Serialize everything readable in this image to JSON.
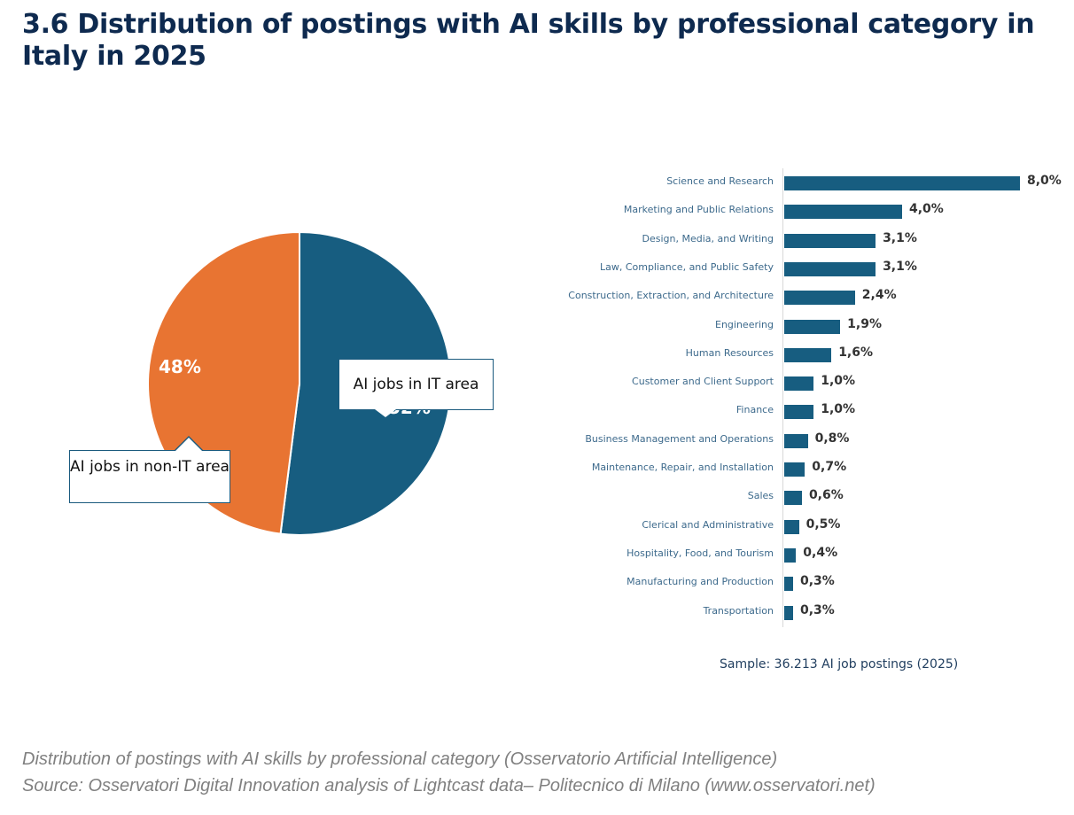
{
  "title": "3.6 Distribution of postings with AI skills by professional category in Italy in 2025",
  "colors": {
    "it": "#175d80",
    "non_it": "#e87432",
    "bar": "#175d80",
    "title": "#0e2a4f"
  },
  "pie": {
    "it_label": "AI jobs in IT area",
    "non_it_label": "AI jobs in non-IT area",
    "non_it_pct": "48%",
    "it_pct": "52%"
  },
  "bars": {
    "sample_note": "Sample: 36.213 AI job postings  (2025)",
    "items": [
      {
        "label": "Science and Research",
        "value": 8.0,
        "display": "8,0%"
      },
      {
        "label": "Marketing and Public Relations",
        "value": 4.0,
        "display": "4,0%"
      },
      {
        "label": "Design, Media, and Writing",
        "value": 3.1,
        "display": "3,1%"
      },
      {
        "label": "Law, Compliance, and Public Safety",
        "value": 3.1,
        "display": "3,1%"
      },
      {
        "label": "Construction, Extraction, and Architecture",
        "value": 2.4,
        "display": "2,4%"
      },
      {
        "label": "Engineering",
        "value": 1.9,
        "display": "1,9%"
      },
      {
        "label": "Human Resources",
        "value": 1.6,
        "display": "1,6%"
      },
      {
        "label": "Customer and Client Support",
        "value": 1.0,
        "display": "1,0%"
      },
      {
        "label": "Finance",
        "value": 1.0,
        "display": "1,0%"
      },
      {
        "label": "Business Management and Operations",
        "value": 0.8,
        "display": "0,8%"
      },
      {
        "label": "Maintenance, Repair, and Installation",
        "value": 0.7,
        "display": "0,7%"
      },
      {
        "label": "Sales",
        "value": 0.6,
        "display": "0,6%"
      },
      {
        "label": "Clerical and Administrative",
        "value": 0.5,
        "display": "0,5%"
      },
      {
        "label": "Hospitality, Food, and Tourism",
        "value": 0.4,
        "display": "0,4%"
      },
      {
        "label": "Manufacturing and Production",
        "value": 0.3,
        "display": "0,3%"
      },
      {
        "label": "Transportation",
        "value": 0.3,
        "display": "0,3%"
      }
    ]
  },
  "caption": {
    "line1": "Distribution of postings with AI skills by professional category (Osservatorio Artificial Intelligence)",
    "line2": "Source: Osservatori Digital Innovation analysis of Lightcast data– Politecnico di Milano (www.osservatori.net)"
  },
  "chart_data": [
    {
      "type": "pie",
      "title": "Distribution of postings with AI skills by professional category in Italy in 2025",
      "categories": [
        "AI jobs in IT area",
        "AI jobs in non-IT area"
      ],
      "values": [
        52,
        48
      ],
      "unit": "%"
    },
    {
      "type": "bar",
      "orientation": "horizontal",
      "categories": [
        "Science and Research",
        "Marketing and Public Relations",
        "Design, Media, and Writing",
        "Law, Compliance, and Public Safety",
        "Construction, Extraction, and Architecture",
        "Engineering",
        "Human Resources",
        "Customer and Client Support",
        "Finance",
        "Business Management and Operations",
        "Maintenance, Repair, and Installation",
        "Sales",
        "Clerical and Administrative",
        "Hospitality, Food, and Tourism",
        "Manufacturing and Production",
        "Transportation"
      ],
      "values": [
        8.0,
        4.0,
        3.1,
        3.1,
        2.4,
        1.9,
        1.6,
        1.0,
        1.0,
        0.8,
        0.7,
        0.6,
        0.5,
        0.4,
        0.3,
        0.3
      ],
      "unit": "%",
      "annotation": "Sample: 36.213 AI job postings  (2025)",
      "grid": false
    }
  ]
}
